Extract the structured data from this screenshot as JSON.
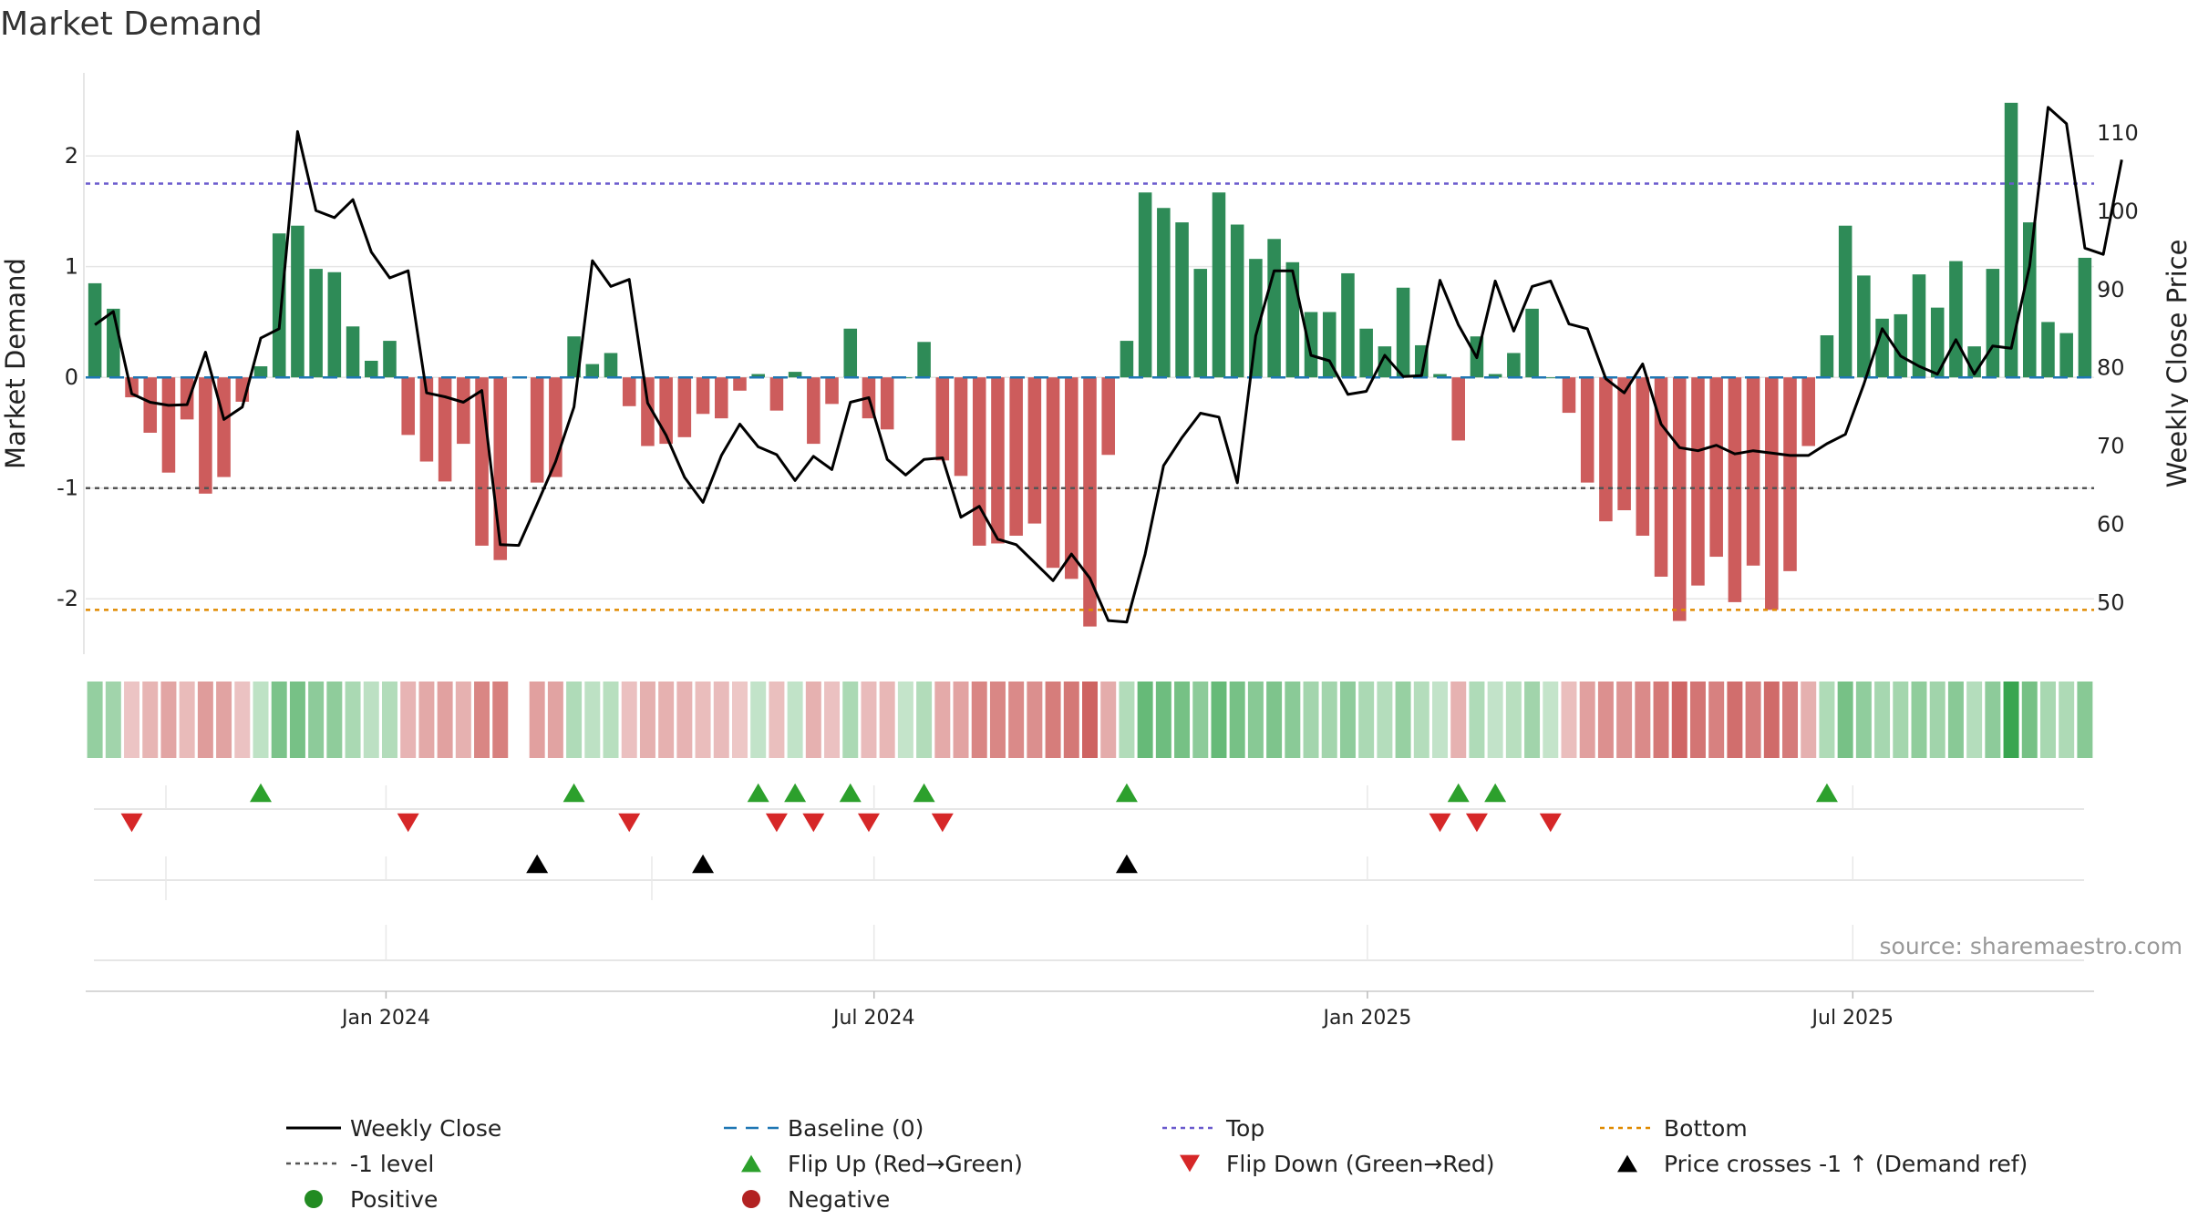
{
  "chart_data": {
    "type": "bar",
    "title": "Market Demand",
    "ylabel": "Market Demand",
    "y2label": "Weekly Close Price",
    "ylim": [
      -2.5,
      2.75
    ],
    "y2lim": [
      43.4,
      117.7
    ],
    "yticks": [
      2,
      1,
      0,
      -1,
      -2
    ],
    "y2ticks": [
      110,
      100,
      90,
      80,
      70,
      60,
      50
    ],
    "x_start": "2023-09-11",
    "x_end": "2025-09-29",
    "date_ticks": [
      {
        "label": "Jan 2024",
        "date": "2024-01-01"
      },
      {
        "label": "Jul 2024",
        "date": "2024-07-01"
      },
      {
        "label": "Jan 2025",
        "date": "2025-01-01"
      },
      {
        "label": "Jul 2025",
        "date": "2025-07-01"
      }
    ],
    "levels": {
      "top": 1.75,
      "bottom": -2.1,
      "minus_one": -1,
      "baseline": 0
    },
    "demand": [
      0.85,
      0.62,
      -0.18,
      -0.5,
      -0.86,
      -0.38,
      -1.05,
      -0.9,
      -0.22,
      0.1,
      1.3,
      1.37,
      0.98,
      0.95,
      0.46,
      0.15,
      0.33,
      -0.52,
      -0.76,
      -0.94,
      -0.6,
      -1.52,
      -1.65,
      null,
      -0.95,
      -0.9,
      0.37,
      0.12,
      0.22,
      -0.26,
      -0.62,
      -0.6,
      -0.54,
      -0.33,
      -0.37,
      -0.12,
      0.03,
      -0.3,
      0.05,
      -0.6,
      -0.24,
      0.44,
      -0.37,
      -0.47,
      0.0,
      0.32,
      -0.75,
      -0.89,
      -1.52,
      -1.5,
      -1.43,
      -1.32,
      -1.72,
      -1.82,
      -2.25,
      -0.7,
      0.33,
      1.67,
      1.53,
      1.4,
      0.98,
      1.67,
      1.38,
      1.07,
      1.25,
      1.04,
      0.59,
      0.59,
      0.94,
      0.44,
      0.28,
      0.81,
      0.29,
      0.03,
      -0.57,
      0.37,
      0.03,
      0.22,
      0.62,
      0.0,
      -0.32,
      -0.95,
      -1.3,
      -1.2,
      -1.43,
      -1.8,
      -2.2,
      -1.88,
      -1.62,
      -2.03,
      -1.7,
      -2.1,
      -1.75,
      -0.62,
      0.38,
      1.37,
      0.92,
      0.53,
      0.57,
      0.93,
      0.63,
      1.05,
      0.28,
      0.98,
      2.48,
      1.4,
      0.5,
      0.4,
      1.08
    ],
    "price": [
      85.5,
      87.2,
      76.7,
      75.6,
      75.2,
      75.3,
      82.0,
      73.4,
      75.0,
      83.8,
      85.0,
      110.2,
      100.1,
      99.2,
      101.5,
      94.8,
      91.5,
      92.4,
      76.8,
      76.3,
      75.6,
      77.1,
      57.4,
      57.3,
      62.6,
      68.0,
      75.0,
      93.7,
      90.4,
      91.3,
      75.5,
      71.4,
      66.0,
      62.8,
      68.8,
      72.8,
      69.9,
      68.9,
      65.6,
      68.7,
      67.0,
      75.6,
      76.2,
      68.3,
      66.3,
      68.3,
      68.5,
      60.9,
      62.3,
      58.1,
      57.4,
      55.1,
      52.8,
      56.2,
      53.1,
      47.7,
      47.5,
      56.2,
      67.5,
      71.1,
      74.2,
      73.7,
      65.3,
      84.1,
      92.4,
      92.4,
      81.6,
      80.9,
      76.6,
      77.0,
      81.6,
      78.9,
      79.0,
      91.2,
      85.5,
      81.3,
      91.1,
      84.7,
      90.4,
      91.1,
      85.6,
      85.0,
      78.6,
      76.8,
      80.5,
      72.8,
      69.8,
      69.4,
      70.1,
      69.0,
      69.4,
      69.1,
      68.8,
      68.8,
      70.3,
      71.5,
      77.9,
      85.0,
      81.5,
      80.2,
      79.2,
      83.6,
      79.2,
      82.8,
      82.5,
      93.0,
      113.3,
      111.2,
      95.3,
      94.5,
      106.6
    ],
    "strip_markers": {
      "flip_up": [
        9,
        26,
        36,
        38,
        41,
        45,
        56,
        74,
        76,
        94
      ],
      "flip_down": [
        2,
        17,
        29,
        37,
        39,
        42,
        46,
        73,
        75,
        79
      ],
      "price_cross": [
        24,
        33,
        56
      ]
    },
    "legend": [
      {
        "label": "Weekly Close",
        "kind": "line",
        "color": "#000000"
      },
      {
        "label": "Baseline (0)",
        "kind": "dash",
        "color": "#1f77b4"
      },
      {
        "label": "Top",
        "kind": "dot",
        "color": "#6a5acd"
      },
      {
        "label": "Bottom",
        "kind": "dot",
        "color": "#e08a00"
      },
      {
        "label": "-1 level",
        "kind": "dot",
        "color": "#555555"
      },
      {
        "label": "Flip Up (Red→Green)",
        "kind": "tri-up",
        "color": "#2ca02c"
      },
      {
        "label": "Flip Down (Green→Red)",
        "kind": "tri-down",
        "color": "#d62728"
      },
      {
        "label": "Price crosses -1 ↑ (Demand ref)",
        "kind": "tri-up",
        "color": "#000000"
      },
      {
        "label": "Positive",
        "kind": "circle",
        "color": "#228b22"
      },
      {
        "label": "Negative",
        "kind": "circle",
        "color": "#b22222"
      }
    ],
    "colors": {
      "positive_bar": "#2e8b57",
      "negative_bar": "#cd5c5c",
      "price_line": "#000000"
    },
    "source_note": "source: sharemaestro.com"
  }
}
